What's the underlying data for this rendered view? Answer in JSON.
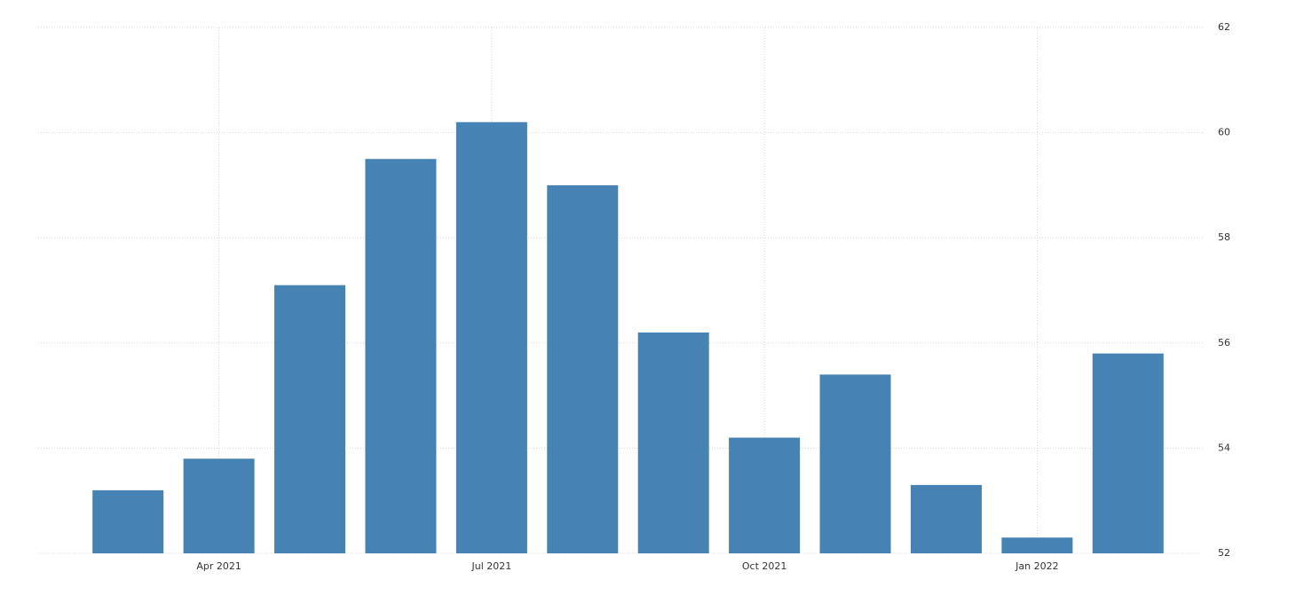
{
  "chart_data": {
    "type": "bar",
    "categories": [
      null,
      "Apr 2021",
      null,
      null,
      "Jul 2021",
      null,
      null,
      "Oct 2021",
      null,
      null,
      "Jan 2022",
      null
    ],
    "values": [
      53.2,
      53.8,
      57.1,
      59.5,
      60.2,
      59.0,
      56.2,
      54.2,
      55.4,
      53.3,
      52.3,
      55.8
    ],
    "color": "#4682b4",
    "ylim": [
      52,
      62
    ],
    "yticks": [
      52,
      54,
      56,
      58,
      60,
      62
    ],
    "grid": true
  }
}
